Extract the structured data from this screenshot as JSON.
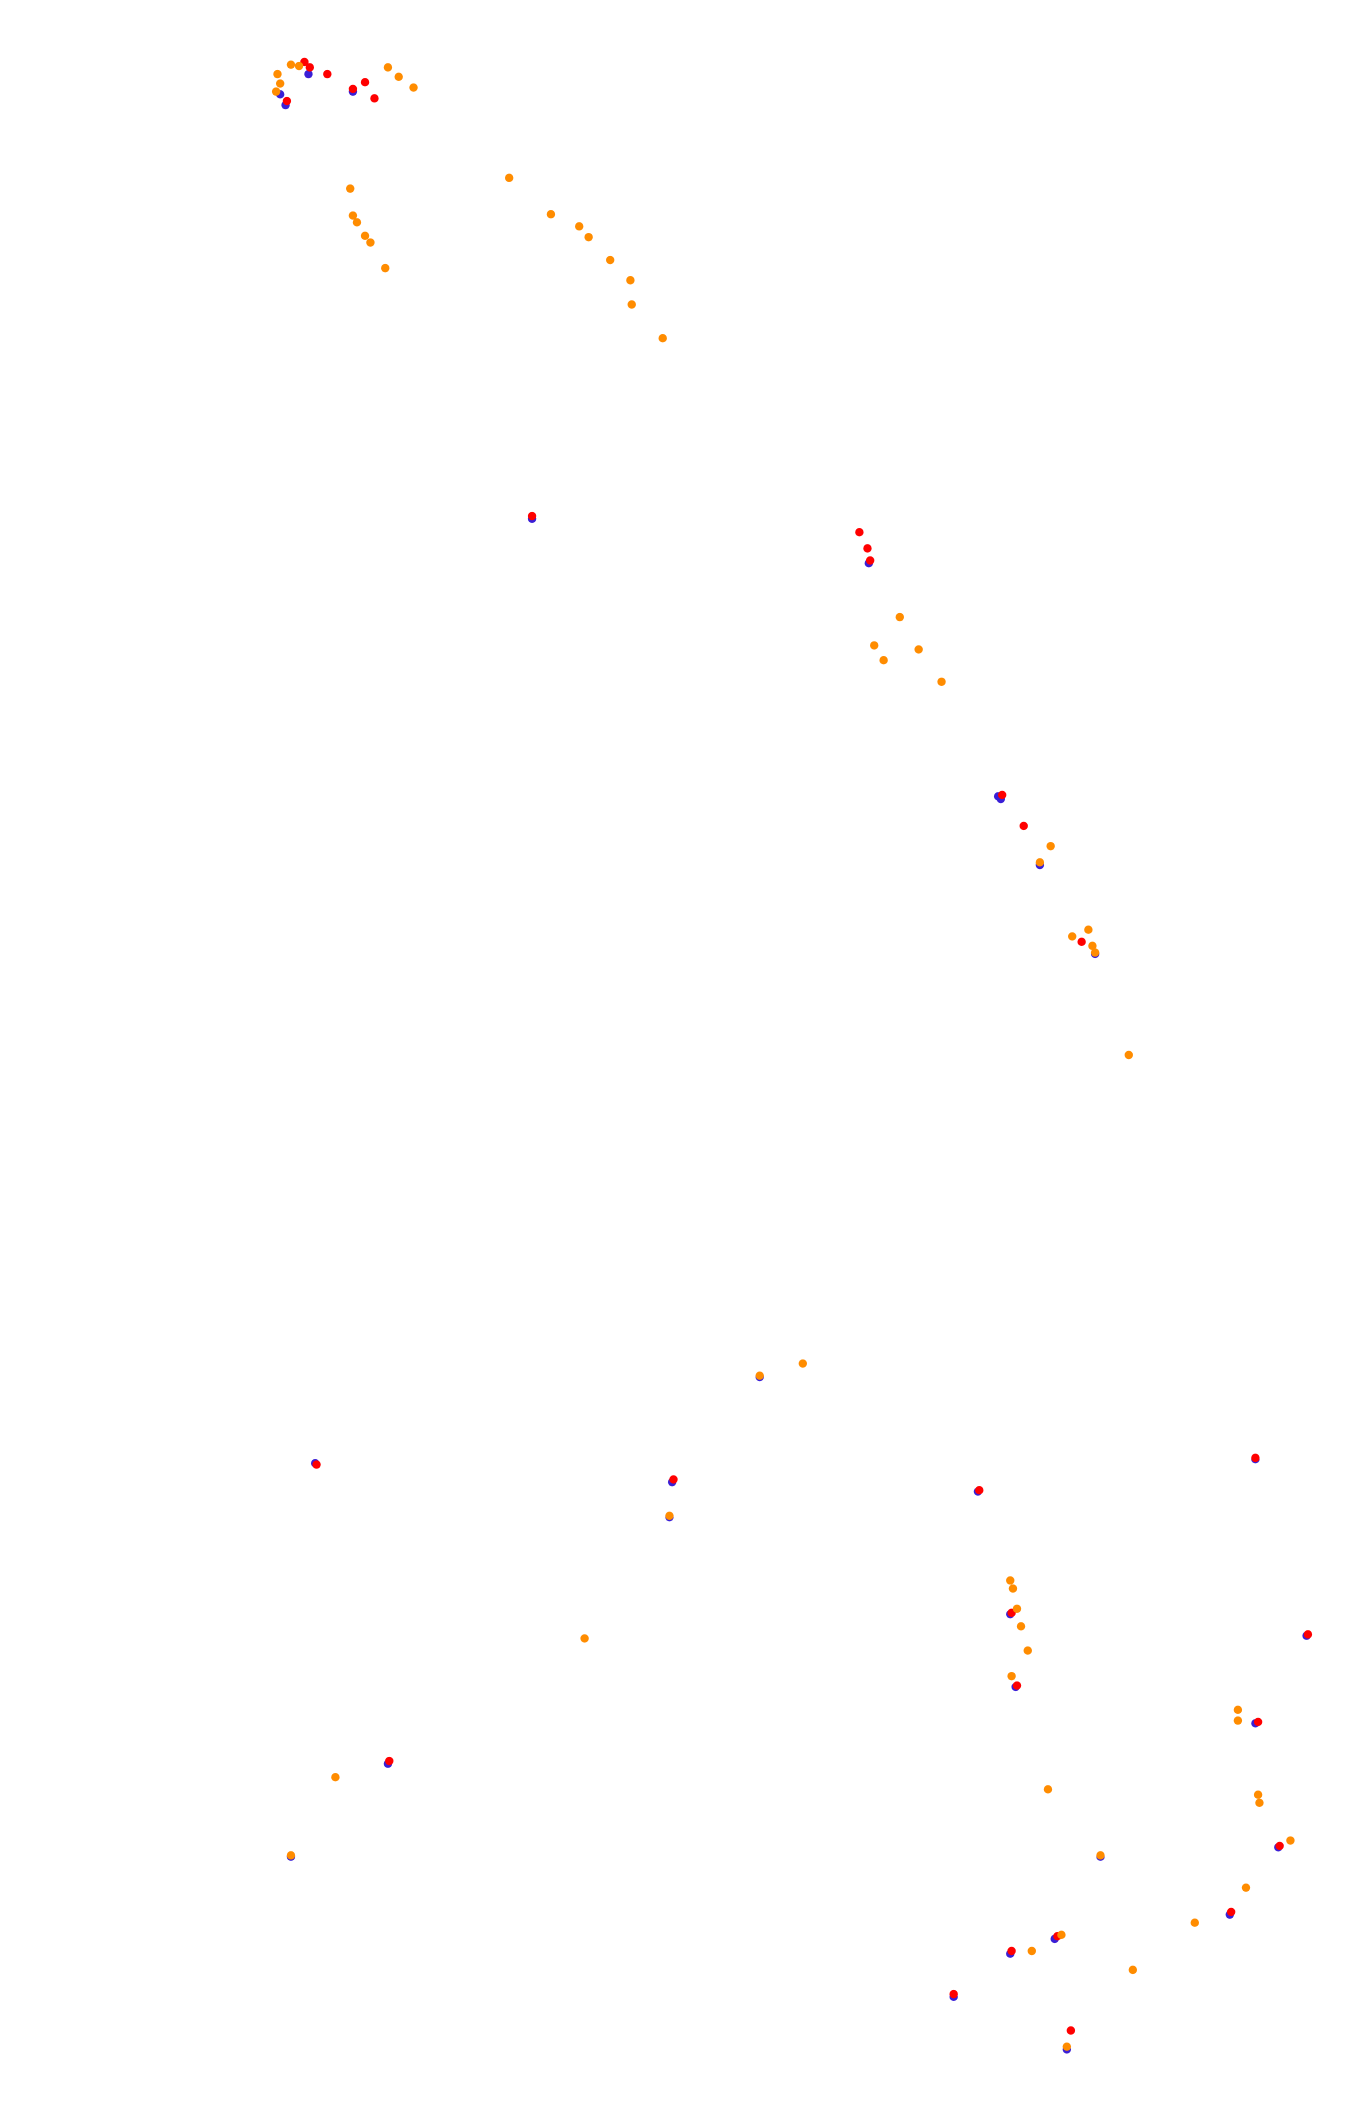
{
  "chart_data": {
    "type": "scatter",
    "xlim": [
      0,
      1000
    ],
    "ylim": [
      1566,
      0
    ],
    "series": [
      {
        "color": "#3a1fd6",
        "x": [
          212,
          208,
          229,
          262,
          395,
          645,
          741,
          743,
          772,
          813,
          234,
          499,
          288,
          726,
          932,
          970,
          750,
          754,
          932,
          949,
          913,
          750,
          783,
          708,
          792,
          564,
          497,
          216,
          817
        ],
        "values": [
          78,
          70,
          55,
          68,
          385,
          418,
          591,
          593,
          642,
          708,
          1086,
          1100,
          1309,
          1107,
          1083,
          1214,
          1198,
          1252,
          1279,
          1371,
          1421,
          1450,
          1439,
          1482,
          1521,
          1022,
          1126,
          1378,
          1378
        ]
      },
      {
        "color": "#ff0000",
        "x": [
          213,
          226,
          230,
          243,
          262,
          271,
          278,
          395,
          638,
          644,
          646,
          744,
          760,
          803,
          235,
          500,
          289,
          727,
          932,
          971,
          751,
          755,
          934,
          950,
          914,
          751,
          785,
          708,
          795
        ],
        "values": [
          75,
          46,
          50,
          55,
          66,
          61,
          73,
          383,
          395,
          407,
          416,
          590,
          613,
          699,
          1087,
          1098,
          1307,
          1106,
          1082,
          1213,
          1197,
          1251,
          1278,
          1370,
          1419,
          1448,
          1437,
          1480,
          1507
        ]
      },
      {
        "color": "#ff8c00",
        "x": [
          206,
          208,
          205,
          216,
          222,
          288,
          296,
          307,
          260,
          262,
          265,
          271,
          275,
          286,
          378,
          409,
          430,
          437,
          453,
          468,
          469,
          492,
          668,
          649,
          656,
          682,
          699,
          780,
          772,
          796,
          808,
          811,
          813,
          838,
          564,
          596,
          497,
          434,
          249,
          216,
          750,
          752,
          755,
          758,
          763,
          751,
          778,
          817,
          766,
          841,
          887,
          919,
          919,
          934,
          935,
          958,
          925,
          792,
          788
        ],
        "values": [
          55,
          62,
          68,
          48,
          49,
          50,
          57,
          65,
          140,
          160,
          165,
          175,
          180,
          199,
          132,
          159,
          168,
          176,
          193,
          208,
          226,
          251,
          458,
          479,
          490,
          482,
          506,
          628,
          640,
          695,
          690,
          702,
          707,
          783,
          1021,
          1012,
          1125,
          1216,
          1319,
          1377,
          1173,
          1179,
          1194,
          1207,
          1225,
          1244,
          1328,
          1377,
          1448,
          1462,
          1427,
          1269,
          1277,
          1332,
          1338,
          1366,
          1401,
          1519,
          1436
        ]
      }
    ]
  }
}
